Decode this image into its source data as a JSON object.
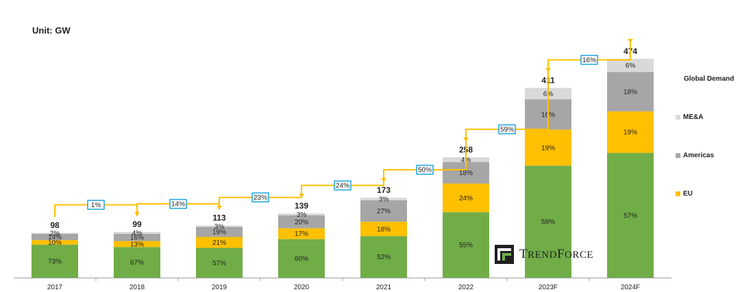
{
  "unit_label": "Unit: GW",
  "legend": {
    "title": "Global Demand",
    "items": [
      {
        "label": "ME&A",
        "color": "#d9d9d9"
      },
      {
        "label": "Americas",
        "color": "#a6a6a6"
      },
      {
        "label": "EU",
        "color": "#ffc000"
      }
    ]
  },
  "logo": {
    "text_big_1": "T",
    "text_small_1": "REND",
    "text_big_2": "F",
    "text_small_2": "ORCE"
  },
  "chart_data": {
    "type": "bar",
    "stacked": true,
    "categories": [
      "2017",
      "2018",
      "2019",
      "2020",
      "2021",
      "2022",
      "2023F",
      "2024F"
    ],
    "totals": [
      98,
      99,
      113,
      139,
      173,
      258,
      411,
      474
    ],
    "series": [
      {
        "name": "",
        "color": "#70ad47",
        "percent_labels": [
          "73%",
          "67%",
          "57%",
          "60%",
          "52%",
          "55%",
          "59%",
          "57%"
        ],
        "shares": [
          73,
          67,
          57,
          60,
          52,
          55,
          59,
          57
        ]
      },
      {
        "name": "EU",
        "color": "#ffc000",
        "percent_labels": [
          "10%",
          "13%",
          "21%",
          "17%",
          "18%",
          "24%",
          "19%",
          "19%"
        ],
        "shares": [
          10,
          13,
          21,
          17,
          18,
          24,
          19,
          19
        ]
      },
      {
        "name": "Americas",
        "color": "#a6a6a6",
        "percent_labels": [
          "14%",
          "16%",
          "19%",
          "20%",
          "27%",
          "18%",
          "16%",
          "18%"
        ],
        "shares": [
          14,
          16,
          19,
          20,
          27,
          18,
          16,
          18
        ]
      },
      {
        "name": "ME&A",
        "color": "#d9d9d9",
        "percent_labels": [
          "2%",
          "4%",
          "3%",
          "3%",
          "3%",
          "4%",
          "6%",
          "6%"
        ],
        "shares": [
          2,
          4,
          3,
          3,
          3,
          4,
          6,
          6
        ]
      }
    ],
    "growth_labels": [
      "1%",
      "14%",
      "23%",
      "24%",
      "50%",
      "59%",
      "16%"
    ],
    "ylim": [
      0,
      474
    ],
    "xlabel": "",
    "ylabel": "",
    "grid": false,
    "legend_position": "right"
  }
}
